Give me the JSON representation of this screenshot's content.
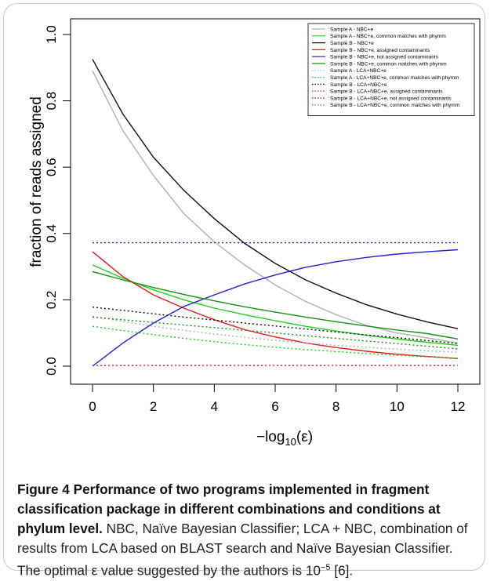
{
  "chart_data": {
    "type": "line",
    "xlabel": "−log10(ε)",
    "xlabel_main": "−log",
    "xlabel_sub": "10",
    "xlabel_arg": "(ε)",
    "ylabel": "fraction of reads assigned",
    "xlim": [
      0,
      12
    ],
    "ylim": [
      0,
      1
    ],
    "xticks": [
      0,
      2,
      4,
      6,
      8,
      10,
      12
    ],
    "yticks": [
      "0.0",
      "0.2",
      "0.4",
      "0.6",
      "0.8",
      "1.0"
    ],
    "grid": false,
    "legend_position": "top-right",
    "x": [
      0,
      1,
      2,
      3,
      4,
      5,
      6,
      7,
      8,
      9,
      10,
      11,
      12
    ],
    "series": [
      {
        "name": "Sample A - NBC+e",
        "color": "#b0b0b0",
        "style": "solid",
        "values": [
          0.89,
          0.71,
          0.575,
          0.46,
          0.375,
          0.305,
          0.245,
          0.195,
          0.155,
          0.123,
          0.1,
          0.085,
          0.07
        ]
      },
      {
        "name": "Sample A - NBC+e, common matches with phymm",
        "color": "#22cc22",
        "style": "solid",
        "values": [
          0.305,
          0.265,
          0.23,
          0.2,
          0.175,
          0.155,
          0.137,
          0.12,
          0.106,
          0.093,
          0.082,
          0.072,
          0.063
        ]
      },
      {
        "name": "Sample B - NBC+e",
        "color": "#111111",
        "style": "solid",
        "values": [
          0.925,
          0.76,
          0.63,
          0.53,
          0.445,
          0.37,
          0.31,
          0.26,
          0.22,
          0.185,
          0.157,
          0.133,
          0.113
        ]
      },
      {
        "name": "Sample B - NBC+e, assigned contaminants",
        "color": "#e8191c",
        "style": "solid",
        "values": [
          0.345,
          0.27,
          0.215,
          0.175,
          0.14,
          0.11,
          0.088,
          0.07,
          0.056,
          0.045,
          0.036,
          0.029,
          0.023
        ]
      },
      {
        "name": "Sample B - NBC+e, not assigned contaminants",
        "color": "#2222cc",
        "style": "solid",
        "values": [
          0.0,
          0.07,
          0.13,
          0.18,
          0.215,
          0.248,
          0.275,
          0.298,
          0.315,
          0.328,
          0.338,
          0.345,
          0.351
        ]
      },
      {
        "name": "Sample B - NBC+e, common matches with phymm",
        "color": "#1a8f1a",
        "style": "solid",
        "values": [
          0.285,
          0.26,
          0.237,
          0.216,
          0.197,
          0.179,
          0.163,
          0.148,
          0.134,
          0.121,
          0.109,
          0.098,
          0.082
        ]
      },
      {
        "name": "Sample A - LCA+NBC+e",
        "color": "#b0b0b0",
        "style": "dotted",
        "values": [
          0.15,
          0.135,
          0.12,
          0.108,
          0.097,
          0.087,
          0.078,
          0.07,
          0.063,
          0.057,
          0.051,
          0.046,
          0.042
        ]
      },
      {
        "name": "Sample A - LCA+NBC+e, common matches with phymm",
        "color": "#22cc22",
        "style": "dotted",
        "values": [
          0.12,
          0.107,
          0.095,
          0.084,
          0.074,
          0.065,
          0.057,
          0.05,
          0.044,
          0.038,
          0.033,
          0.028,
          0.024
        ]
      },
      {
        "name": "Sample B - LCA+NBC+e",
        "color": "#111111",
        "style": "dotted",
        "values": [
          0.178,
          0.168,
          0.158,
          0.148,
          0.139,
          0.13,
          0.121,
          0.112,
          0.103,
          0.094,
          0.086,
          0.077,
          0.068
        ]
      },
      {
        "name": "Sample B - LCA+NBC+e, assigned contaminants",
        "color": "#e8191c",
        "style": "dotted",
        "values": [
          0.002,
          0.002,
          0.002,
          0.002,
          0.002,
          0.002,
          0.002,
          0.002,
          0.002,
          0.002,
          0.002,
          0.002,
          0.002
        ]
      },
      {
        "name": "Sample B - LCA+NBC+e, not assigned contaminants",
        "color": "#2222cc",
        "style": "dotted",
        "values": [
          0.372,
          0.372,
          0.372,
          0.372,
          0.372,
          0.372,
          0.372,
          0.372,
          0.372,
          0.372,
          0.372,
          0.372,
          0.372
        ]
      },
      {
        "name": "Sample B - LCA+NBC+e, common matches with phymm",
        "color": "#1a8f1a",
        "style": "dotted",
        "values": [
          0.148,
          0.14,
          0.132,
          0.124,
          0.116,
          0.108,
          0.1,
          0.092,
          0.084,
          0.076,
          0.068,
          0.06,
          0.052
        ]
      }
    ]
  },
  "caption": {
    "title": "Figure 4 Performance of two programs implemented in fragment classification package in different combinations and conditions at phylum level.",
    "body_before_sup": " NBC, Naïve Bayesian Classifier; LCA + NBC, combination of results from LCA based on BLAST search and Naïve Bayesian Classifier. The optimal ε value suggested by the authors is 10",
    "sup": "−5",
    "body_after_sup": " [6]."
  }
}
